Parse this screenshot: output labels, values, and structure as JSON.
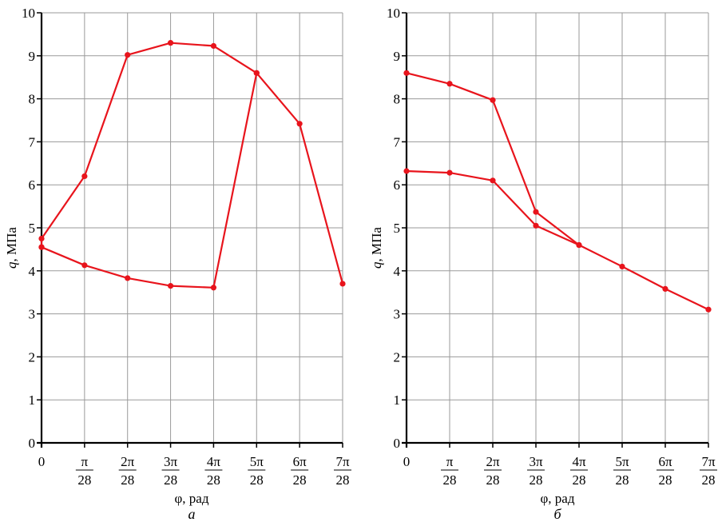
{
  "chart_data": [
    {
      "type": "line",
      "panel_label": "а",
      "xlabel": "φ, рад",
      "ylabel_var": "q",
      "ylabel_unit": ", МПа",
      "x_ticks": [
        {
          "num": "0",
          "den": ""
        },
        {
          "num": "π",
          "den": "28"
        },
        {
          "num": "2π",
          "den": "28"
        },
        {
          "num": "3π",
          "den": "28"
        },
        {
          "num": "4π",
          "den": "28"
        },
        {
          "num": "5π",
          "den": "28"
        },
        {
          "num": "6π",
          "den": "28"
        },
        {
          "num": "7π",
          "den": "28"
        }
      ],
      "y_ticks": [
        "0",
        "1",
        "2",
        "3",
        "4",
        "5",
        "6",
        "7",
        "8",
        "9",
        "10"
      ],
      "xlim": [
        0,
        7
      ],
      "ylim": [
        0,
        10
      ],
      "x_unit": "π/28",
      "grid": true,
      "series_color": "#e8141c",
      "series": [
        {
          "x": [
            0,
            0,
            1,
            2,
            3,
            4,
            5,
            6,
            7
          ],
          "y": [
            4.55,
            4.75,
            6.2,
            9.02,
            9.3,
            9.23,
            8.6,
            7.42,
            3.7
          ]
        },
        {
          "x": [
            0,
            1,
            2,
            3,
            4,
            5
          ],
          "y": [
            4.55,
            4.13,
            3.83,
            3.65,
            3.61,
            8.6
          ]
        }
      ]
    },
    {
      "type": "line",
      "panel_label": "б",
      "xlabel": "φ, рад",
      "ylabel_var": "q",
      "ylabel_unit": ", МПа",
      "x_ticks": [
        {
          "num": "0",
          "den": ""
        },
        {
          "num": "π",
          "den": "28"
        },
        {
          "num": "2π",
          "den": "28"
        },
        {
          "num": "3π",
          "den": "28"
        },
        {
          "num": "4π",
          "den": "28"
        },
        {
          "num": "5π",
          "den": "28"
        },
        {
          "num": "6π",
          "den": "28"
        },
        {
          "num": "7π",
          "den": "28"
        }
      ],
      "y_ticks": [
        "0",
        "1",
        "2",
        "3",
        "4",
        "5",
        "6",
        "7",
        "8",
        "9",
        "10"
      ],
      "xlim": [
        0,
        7
      ],
      "ylim": [
        0,
        10
      ],
      "x_unit": "π/28",
      "grid": true,
      "series_color": "#e8141c",
      "series": [
        {
          "x": [
            0,
            1,
            2,
            3,
            4
          ],
          "y": [
            8.6,
            8.35,
            7.97,
            5.37,
            4.6
          ]
        },
        {
          "x": [
            0,
            1,
            2,
            3,
            4,
            5,
            6,
            7
          ],
          "y": [
            6.32,
            6.28,
            6.1,
            5.05,
            4.6,
            4.1,
            3.58,
            3.1
          ]
        }
      ]
    }
  ]
}
